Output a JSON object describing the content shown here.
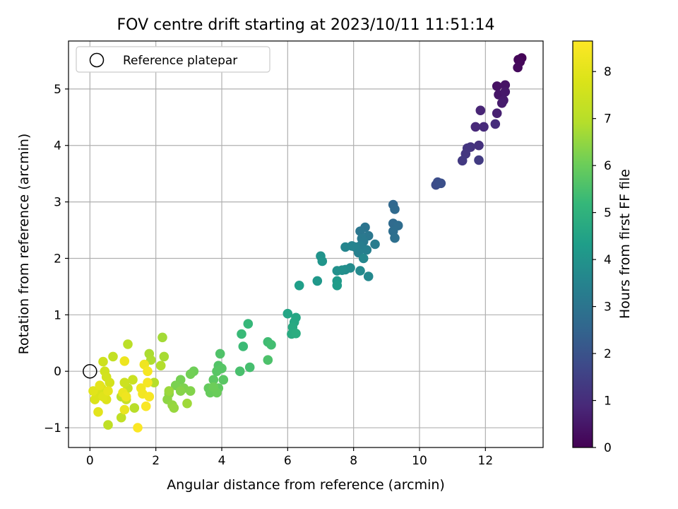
{
  "chart_data": {
    "type": "scatter",
    "title": "FOV centre drift starting at 2023/10/11 11:51:14",
    "xlabel": "Angular distance from reference (arcmin)",
    "ylabel": "Rotation from reference (arcmin)",
    "xlim": [
      -0.65,
      13.75
    ],
    "ylim": [
      -1.35,
      5.85
    ],
    "xticks": [
      0,
      2,
      4,
      6,
      8,
      10,
      12
    ],
    "yticks": [
      -1,
      0,
      1,
      2,
      3,
      4,
      5
    ],
    "grid": true,
    "legend": {
      "placement": "top-left",
      "entries": [
        {
          "label": "Reference platepar",
          "marker": "open-circle"
        }
      ]
    },
    "reference_point": {
      "x": 0,
      "y": 0
    },
    "colorbar": {
      "label": "Hours from first FF file",
      "colormap": "viridis",
      "range": [
        0,
        8.65
      ],
      "ticks": [
        0,
        1,
        2,
        3,
        4,
        5,
        6,
        7,
        8
      ]
    },
    "columns": [
      "x",
      "y",
      "hours"
    ],
    "points": [
      [
        13.1,
        5.55,
        0.05
      ],
      [
        13.0,
        5.52,
        0.1
      ],
      [
        13.05,
        5.48,
        0.15
      ],
      [
        12.98,
        5.38,
        0.2
      ],
      [
        12.35,
        5.05,
        0.35
      ],
      [
        12.6,
        5.07,
        0.4
      ],
      [
        12.4,
        4.9,
        0.45
      ],
      [
        12.6,
        4.95,
        0.5
      ],
      [
        12.55,
        4.8,
        0.55
      ],
      [
        12.5,
        4.75,
        0.6
      ],
      [
        12.35,
        4.57,
        0.7
      ],
      [
        11.85,
        4.62,
        0.8
      ],
      [
        11.7,
        4.33,
        0.9
      ],
      [
        11.95,
        4.33,
        0.95
      ],
      [
        12.3,
        4.38,
        1.0
      ],
      [
        11.8,
        4.0,
        1.1
      ],
      [
        11.55,
        3.97,
        1.15
      ],
      [
        11.45,
        3.95,
        1.2
      ],
      [
        11.4,
        3.85,
        1.25
      ],
      [
        11.3,
        3.73,
        1.3
      ],
      [
        11.8,
        3.74,
        1.35
      ],
      [
        10.5,
        3.3,
        1.8
      ],
      [
        10.55,
        3.35,
        1.85
      ],
      [
        10.65,
        3.33,
        1.9
      ],
      [
        9.2,
        2.95,
        2.6
      ],
      [
        9.25,
        2.87,
        2.65
      ],
      [
        9.2,
        2.62,
        2.7
      ],
      [
        9.35,
        2.58,
        2.75
      ],
      [
        9.2,
        2.48,
        2.8
      ],
      [
        9.25,
        2.36,
        2.85
      ],
      [
        8.35,
        2.55,
        3.0
      ],
      [
        8.2,
        2.48,
        3.05
      ],
      [
        8.45,
        2.4,
        3.1
      ],
      [
        8.25,
        2.35,
        3.15
      ],
      [
        8.3,
        2.3,
        3.2
      ],
      [
        8.65,
        2.25,
        3.25
      ],
      [
        8.2,
        2.22,
        3.3
      ],
      [
        8.4,
        2.15,
        3.35
      ],
      [
        8.15,
        2.1,
        3.4
      ],
      [
        8.05,
        2.2,
        3.45
      ],
      [
        7.95,
        2.22,
        3.5
      ],
      [
        7.75,
        2.2,
        3.55
      ],
      [
        8.3,
        2.0,
        3.6
      ],
      [
        8.45,
        1.68,
        3.65
      ],
      [
        8.2,
        1.78,
        3.7
      ],
      [
        7.9,
        1.83,
        3.75
      ],
      [
        7.75,
        1.8,
        3.8
      ],
      [
        7.65,
        1.79,
        3.85
      ],
      [
        7.5,
        1.78,
        3.9
      ],
      [
        7.0,
        2.04,
        4.0
      ],
      [
        7.05,
        1.95,
        4.05
      ],
      [
        6.9,
        1.6,
        4.15
      ],
      [
        7.5,
        1.6,
        4.2
      ],
      [
        7.5,
        1.52,
        4.25
      ],
      [
        6.35,
        1.52,
        4.35
      ],
      [
        6.0,
        1.02,
        4.55
      ],
      [
        6.25,
        0.95,
        4.6
      ],
      [
        6.2,
        0.87,
        4.65
      ],
      [
        6.15,
        0.78,
        4.7
      ],
      [
        6.12,
        0.66,
        4.75
      ],
      [
        6.25,
        0.67,
        4.8
      ],
      [
        4.8,
        0.84,
        5.2
      ],
      [
        4.6,
        0.66,
        5.25
      ],
      [
        4.65,
        0.44,
        5.3
      ],
      [
        5.4,
        0.52,
        5.35
      ],
      [
        5.5,
        0.47,
        5.4
      ],
      [
        4.85,
        0.07,
        5.45
      ],
      [
        4.55,
        0.0,
        5.5
      ],
      [
        5.4,
        0.2,
        5.55
      ],
      [
        3.95,
        0.31,
        5.6
      ],
      [
        3.9,
        0.1,
        5.65
      ],
      [
        4.0,
        0.05,
        5.7
      ],
      [
        3.85,
        0.0,
        5.72
      ],
      [
        4.05,
        -0.15,
        5.75
      ],
      [
        3.75,
        -0.15,
        5.8
      ],
      [
        3.9,
        -0.3,
        5.85
      ],
      [
        3.6,
        -0.3,
        5.9
      ],
      [
        3.65,
        -0.38,
        5.95
      ],
      [
        3.85,
        -0.38,
        6.0
      ],
      [
        3.75,
        -0.28,
        6.02
      ],
      [
        3.15,
        0.0,
        6.05
      ],
      [
        3.05,
        -0.05,
        6.1
      ],
      [
        2.75,
        -0.15,
        6.15
      ],
      [
        2.6,
        -0.25,
        6.2
      ],
      [
        2.85,
        -0.3,
        6.25
      ],
      [
        3.05,
        -0.35,
        6.3
      ],
      [
        2.75,
        -0.35,
        6.35
      ],
      [
        2.4,
        -0.4,
        6.4
      ],
      [
        2.35,
        -0.5,
        6.45
      ],
      [
        2.5,
        -0.6,
        6.5
      ],
      [
        2.55,
        -0.65,
        6.55
      ],
      [
        2.4,
        -0.35,
        6.6
      ],
      [
        2.95,
        -0.57,
        6.65
      ],
      [
        2.2,
        0.6,
        6.7
      ],
      [
        2.25,
        0.26,
        6.75
      ],
      [
        1.8,
        0.31,
        6.8
      ],
      [
        1.85,
        0.2,
        6.85
      ],
      [
        2.15,
        0.1,
        6.9
      ],
      [
        1.95,
        -0.2,
        6.95
      ],
      [
        1.35,
        -0.65,
        7.0
      ],
      [
        1.15,
        0.48,
        7.05
      ],
      [
        0.95,
        -0.45,
        7.1
      ],
      [
        0.55,
        -0.95,
        7.15
      ],
      [
        0.95,
        -0.82,
        7.2
      ],
      [
        0.7,
        0.26,
        7.25
      ],
      [
        1.15,
        -0.3,
        7.3
      ],
      [
        1.1,
        -0.5,
        7.35
      ],
      [
        1.3,
        -0.15,
        7.4
      ],
      [
        1.05,
        -0.2,
        7.45
      ],
      [
        0.4,
        0.17,
        7.5
      ],
      [
        0.45,
        0.0,
        7.55
      ],
      [
        0.5,
        -0.1,
        7.6
      ],
      [
        0.6,
        -0.2,
        7.65
      ],
      [
        0.35,
        -0.3,
        7.7
      ],
      [
        0.25,
        -0.4,
        7.75
      ],
      [
        0.15,
        -0.5,
        7.8
      ],
      [
        0.5,
        -0.5,
        7.85
      ],
      [
        0.4,
        -0.45,
        7.9
      ],
      [
        0.1,
        -0.35,
        7.95
      ],
      [
        0.25,
        -0.72,
        8.0
      ],
      [
        0.3,
        -0.25,
        8.05
      ],
      [
        0.55,
        -0.35,
        8.1
      ],
      [
        1.05,
        -0.68,
        8.15
      ],
      [
        1.0,
        -0.38,
        8.2
      ],
      [
        1.05,
        0.18,
        8.25
      ],
      [
        1.65,
        0.12,
        8.3
      ],
      [
        1.55,
        -0.3,
        8.35
      ],
      [
        1.6,
        -0.4,
        8.4
      ],
      [
        1.75,
        -0.2,
        8.45
      ],
      [
        1.8,
        -0.45,
        8.5
      ],
      [
        1.7,
        -0.62,
        8.55
      ],
      [
        1.45,
        -1.0,
        8.6
      ],
      [
        1.75,
        0.0,
        8.45
      ],
      [
        1.1,
        -0.45,
        8.3
      ]
    ]
  }
}
